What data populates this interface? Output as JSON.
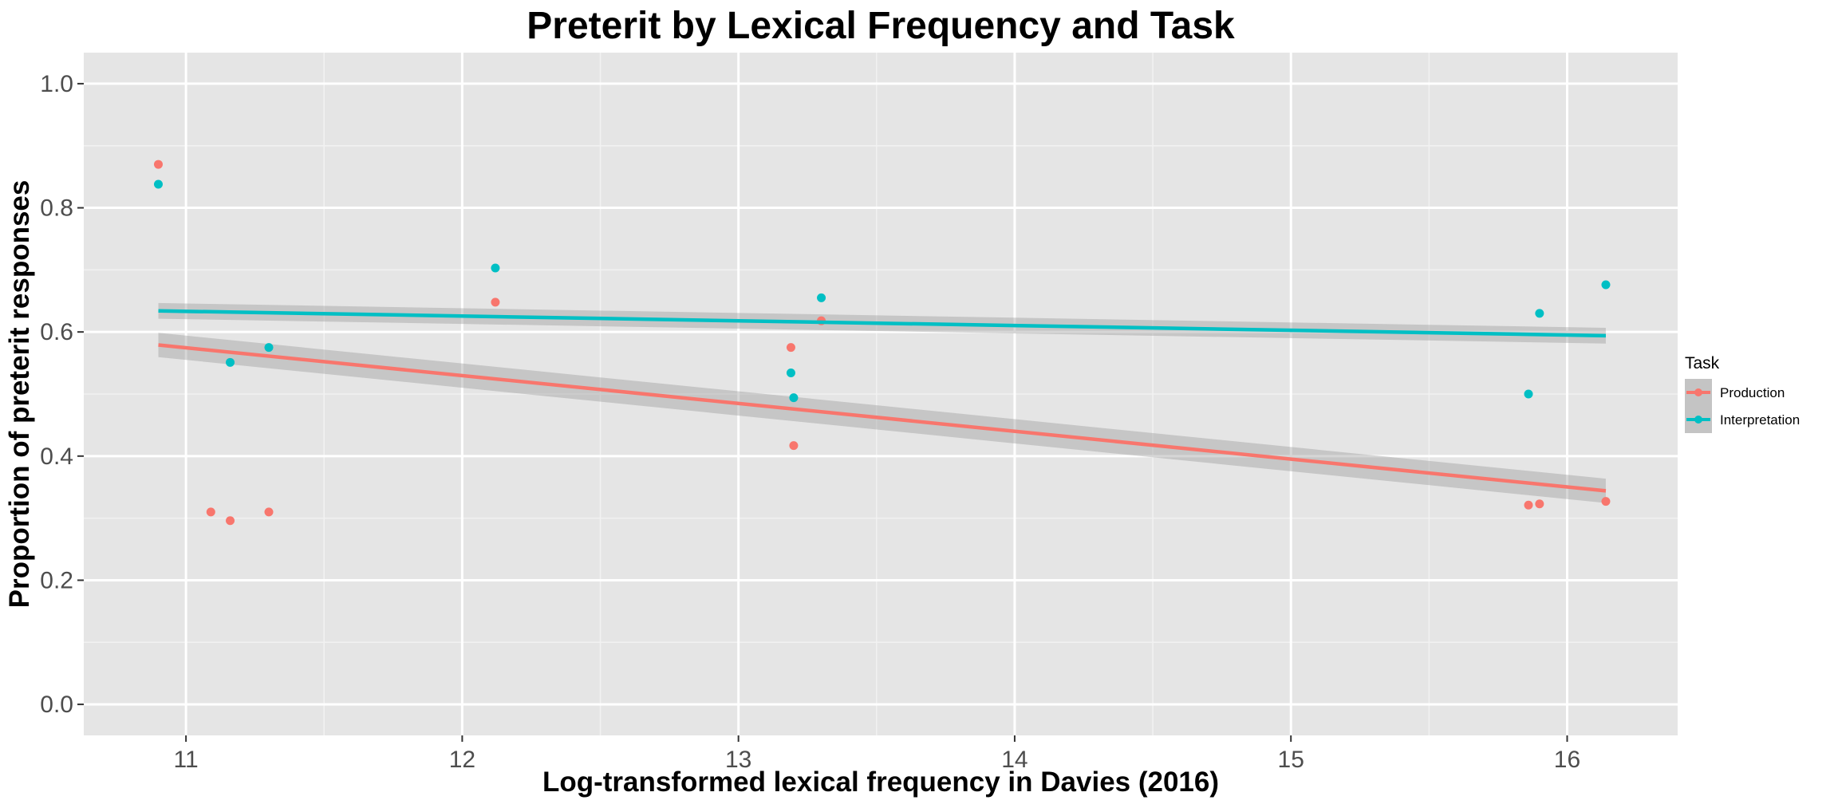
{
  "chart_data": {
    "type": "scatter",
    "title": "Preterit by Lexical Frequency and Task",
    "xlabel": "Log-transformed lexical frequency in Davies (2016)",
    "ylabel": "Proportion of preterit responses",
    "xlim": [
      10.63,
      16.4
    ],
    "ylim": [
      -0.05,
      1.05
    ],
    "x_ticks": [
      11,
      12,
      13,
      14,
      15,
      16
    ],
    "y_ticks": [
      0.0,
      0.2,
      0.4,
      0.6,
      0.8,
      1.0
    ],
    "x_tick_labels": [
      "11",
      "12",
      "13",
      "14",
      "15",
      "16"
    ],
    "y_tick_labels": [
      "0.0",
      "0.2",
      "0.4",
      "0.6",
      "0.8",
      "1.0"
    ],
    "grid": true,
    "background": "#e5e5e5",
    "legend": {
      "title": "Task",
      "position": "right"
    },
    "series": [
      {
        "name": "Production",
        "color": "#f8766d",
        "points": [
          {
            "x": 10.9,
            "y": 0.87
          },
          {
            "x": 11.09,
            "y": 0.31
          },
          {
            "x": 11.16,
            "y": 0.296
          },
          {
            "x": 11.3,
            "y": 0.31
          },
          {
            "x": 12.12,
            "y": 0.648
          },
          {
            "x": 13.19,
            "y": 0.575
          },
          {
            "x": 13.2,
            "y": 0.417
          },
          {
            "x": 13.3,
            "y": 0.618
          },
          {
            "x": 15.86,
            "y": 0.321
          },
          {
            "x": 15.9,
            "y": 0.323
          },
          {
            "x": 16.14,
            "y": 0.327
          }
        ],
        "fit": {
          "x": [
            10.9,
            16.14
          ],
          "y": [
            0.579,
            0.344
          ],
          "ci_half_width": 0.017
        }
      },
      {
        "name": "Interpretation",
        "color": "#00bfc4",
        "points": [
          {
            "x": 10.9,
            "y": 0.838
          },
          {
            "x": 11.16,
            "y": 0.551
          },
          {
            "x": 11.3,
            "y": 0.575
          },
          {
            "x": 12.12,
            "y": 0.703
          },
          {
            "x": 13.19,
            "y": 0.534
          },
          {
            "x": 13.2,
            "y": 0.494
          },
          {
            "x": 13.3,
            "y": 0.655
          },
          {
            "x": 15.86,
            "y": 0.5
          },
          {
            "x": 15.9,
            "y": 0.63
          },
          {
            "x": 16.14,
            "y": 0.676
          }
        ],
        "fit": {
          "x": [
            10.9,
            16.14
          ],
          "y": [
            0.634,
            0.594
          ],
          "ci_half_width": 0.011
        }
      }
    ]
  }
}
